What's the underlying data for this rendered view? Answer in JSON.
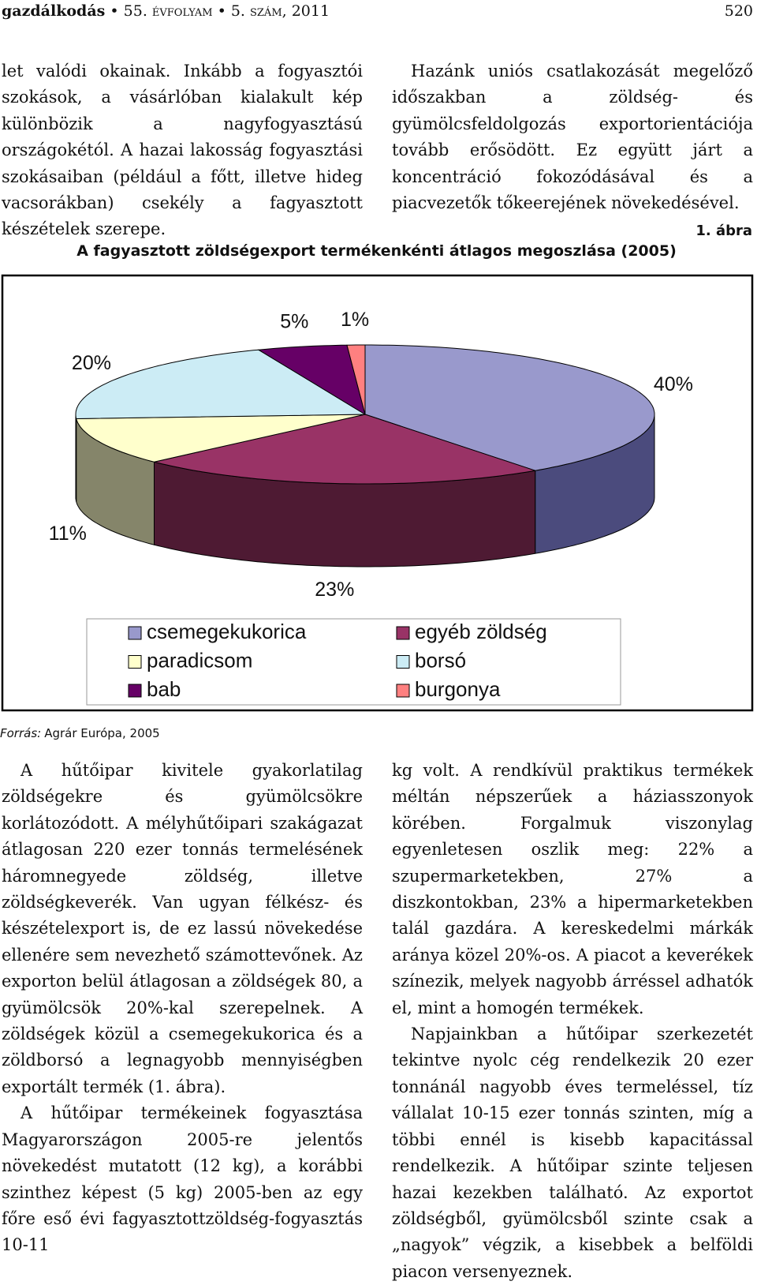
{
  "header": {
    "journal": "gazdálkodás",
    "volume": "55. évfolyam",
    "issue": "5. szám, 2011",
    "page": "520"
  },
  "top_left": [
    "let valódi okainak. Inkább a fogyasztói szokások, a vásárlóban kialakult kép különbözik a nagyfogyasztású országokétól. A hazai lakosság fogyasztási szokásaiban (például a főtt, illetve hideg vacsorákban) csekély a fagyasztott készételek szerepe."
  ],
  "top_right": [
    "Hazánk uniós csatlakozását megelőző időszakban a zöldség- és gyümölcsfeldolgozás exportorientációja tovább erősödött. Ez együtt járt a koncentráció fokozódásával és a piacvezetők tőkeerejének növekedésével."
  ],
  "figure_number": "1. ábra",
  "source": {
    "label": "Forrás:",
    "text": "Agrár Európa, 2005"
  },
  "chart_data": {
    "type": "pie",
    "title": "A fagyasztott zöldségexport termékenkénti átlagos megoszlása (2005)",
    "categories": [
      "csemegekukorica",
      "egyéb zöldség",
      "paradicsom",
      "borsó",
      "bab",
      "burgonya"
    ],
    "values": [
      40,
      23,
      11,
      20,
      5,
      1
    ],
    "value_labels": [
      "40%",
      "23%",
      "11%",
      "20%",
      "5%",
      "1%"
    ],
    "colors": [
      "#9999cc",
      "#993366",
      "#ffffcc",
      "#ccecf5",
      "#660066",
      "#ff8080"
    ],
    "side_colors": [
      "#4b4b7d",
      "#4e1a33",
      "#85856a",
      "#6a7c80",
      "#330033",
      "#804040"
    ],
    "three_d": true,
    "legend": "bottom"
  },
  "bottom_left": [
    "A hűtőipar kivitele gyakorlatilag zöldségekre és gyümölcsökre korlátozódott. A mélyhűtőipari szakágazat átlagosan 220 ezer tonnás termelésének háromnegyede zöldség, illetve zöldségkeverék. Van ugyan félkész- és készételexport is, de ez lassú növekedése ellenére sem nevezhető számottevőnek. Az exporton belül átlagosan a zöldségek 80, a gyümölcsök 20%-kal szerepelnek. A zöldségek közül a csemegekukorica és a zöldborsó a legnagyobb mennyiségben exportált termék (1. ábra).",
    "A hűtőipar termékeinek fogyasztása Magyarországon 2005-re jelentős növekedést mutatott (12 kg), a korábbi szinthez képest (5 kg) 2005-ben az egy főre eső évi fagyasztottzöldség-fogyasztás 10-11"
  ],
  "bottom_right": [
    "kg volt. A rendkívül praktikus termékek méltán népszerűek a háziasszonyok körében. Forgalmuk viszonylag egyenletesen oszlik meg: 22% a szupermarketekben, 27% a diszkontokban, 23% a hipermarketekben talál gazdára. A kereskedelmi márkák aránya közel 20%-os. A piacot a keverékek színezik, melyek nagyobb árréssel adhatók el, mint a homogén termékek.",
    "Napjainkban a hűtőipar szerkezetét tekintve nyolc cég rendelkezik 20 ezer tonnánál nagyobb éves termeléssel, tíz vállalat 10-15 ezer tonnás szinten, míg a többi ennél is kisebb kapacitással rendelkezik. A hűtőipar szinte teljesen hazai kezekben található. Az exportot zöldségből, gyümölcsből szinte csak a „nagyok” végzik, a kisebbek a belföldi piacon versenyeznek."
  ]
}
